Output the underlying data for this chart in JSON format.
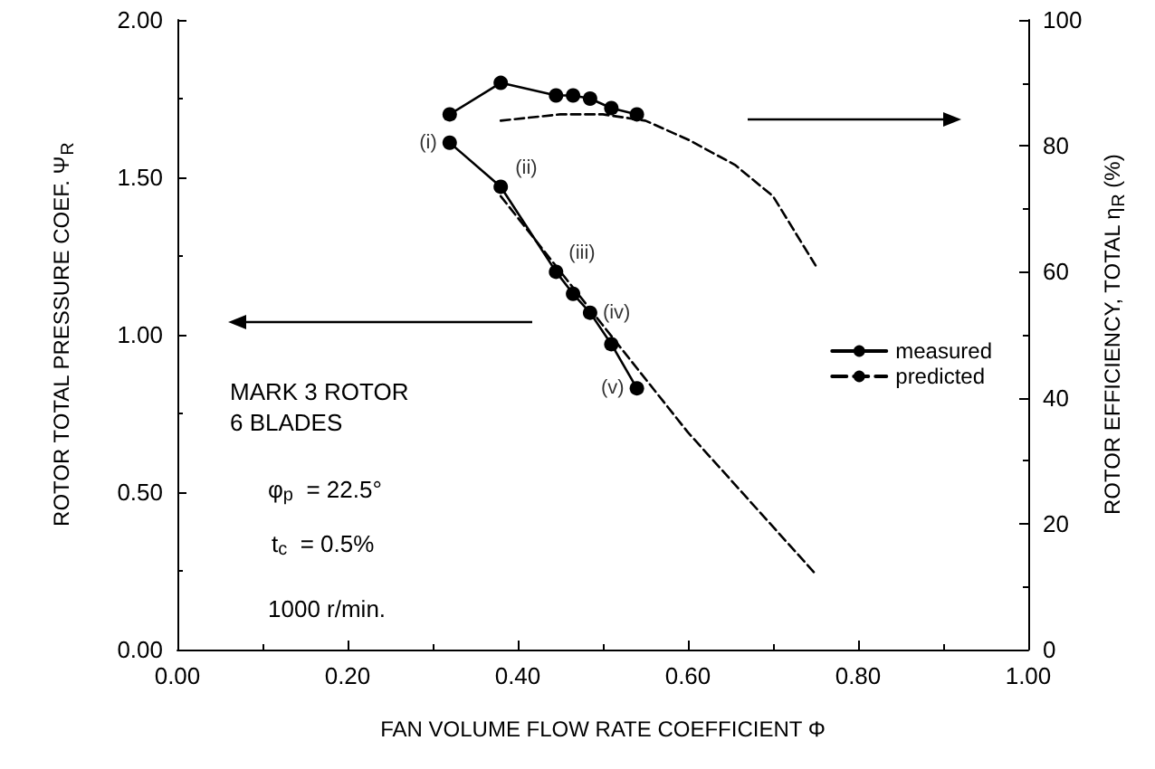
{
  "chart_data": {
    "type": "line",
    "xlabel": "FAN VOLUME FLOW RATE COEFFICIENT Φ",
    "ylabel": "ROTOR TOTAL PRESSURE COEF. Ψ$_{R}$",
    "y2label": "ROTOR EFFICIENCY, TOTAL η$_{R}$ (%)",
    "xlim": [
      0,
      1
    ],
    "xticks": [
      {
        "value": 0,
        "label": "0.00"
      },
      {
        "value": 0.2,
        "label": "0.20"
      },
      {
        "value": 0.4,
        "label": "0.40"
      },
      {
        "value": 0.6,
        "label": "0.60"
      },
      {
        "value": 0.8,
        "label": "0.80"
      },
      {
        "value": 1,
        "label": "1.00"
      }
    ],
    "ylim": [
      0,
      2
    ],
    "yticks": [
      {
        "value": 0,
        "label": "0.00"
      },
      {
        "value": 0.5,
        "label": "0.50"
      },
      {
        "value": 1,
        "label": "1.00"
      },
      {
        "value": 1.5,
        "label": "1.50"
      },
      {
        "value": 2,
        "label": "2.00"
      }
    ],
    "y2lim": [
      0,
      100
    ],
    "y2ticks": [
      0,
      20,
      40,
      60,
      80,
      100
    ],
    "grid": false,
    "legend": "right",
    "series": [
      {
        "name": "measured",
        "color": "#000000",
        "marker": "circle",
        "line_style": "solid",
        "x": [
          0.32,
          0.38,
          0.445,
          0.465,
          0.485,
          0.51,
          0.54
        ],
        "values": [
          1.61,
          1.47,
          1.2,
          1.13,
          1.07,
          0.97,
          0.83
        ]
      },
      {
        "name": "predicted",
        "color": "#000000",
        "marker": "none",
        "line_style": "dashed",
        "x": [
          0.38,
          0.5,
          0.6,
          0.75
        ],
        "values": [
          1.44,
          1.03,
          0.69,
          0.24
        ]
      },
      {
        "color": "#000000",
        "marker": "circle",
        "line_style": "solid",
        "axis": "y2",
        "x": [
          0.32,
          0.38,
          0.445,
          0.465,
          0.485,
          0.51,
          0.54
        ],
        "values": [
          85,
          90,
          88,
          88,
          87.5,
          86,
          85
        ]
      },
      {
        "color": "#000000",
        "marker": "none",
        "line_style": "dashed",
        "axis": "y2",
        "x": [
          0.38,
          0.45,
          0.5,
          0.55,
          0.6,
          0.655,
          0.7,
          0.75
        ],
        "values": [
          84,
          85,
          85,
          84,
          81,
          77,
          72,
          61
        ]
      }
    ],
    "annotations": [
      {
        "text": "(i)",
        "x": 0.32,
        "y": 1.61
      },
      {
        "text": "(ii)",
        "x": 0.38,
        "y": 1.47
      },
      {
        "text": "(iii)",
        "x": 0.445,
        "y": 1.2
      },
      {
        "text": "(iv)",
        "x": 0.485,
        "y": 1.07
      },
      {
        "text": "(v)",
        "x": 0.54,
        "y": 0.83
      },
      "MARK 3 ROTOR\n6 BLADES",
      "φ$_{p}$  = 22.5°",
      "t$_{c}$  = 0.5%",
      "1000 r/min."
    ]
  }
}
